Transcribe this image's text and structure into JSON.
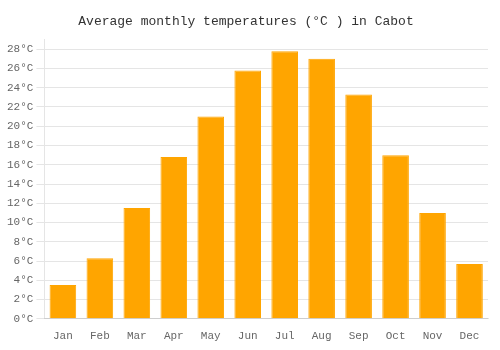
{
  "chart_data": {
    "type": "bar",
    "title": "Average monthly temperatures (°C ) in Cabot",
    "categories": [
      "Jan",
      "Feb",
      "Mar",
      "Apr",
      "May",
      "Jun",
      "Jul",
      "Aug",
      "Sep",
      "Oct",
      "Nov",
      "Dec"
    ],
    "values": [
      3.5,
      6.3,
      11.5,
      16.8,
      21.0,
      25.8,
      27.8,
      27.0,
      23.3,
      17.0,
      11.0,
      5.7
    ],
    "color": "#FFA500",
    "ylim": [
      0,
      29
    ],
    "yticks": [
      {
        "value": 0,
        "label": "0°C"
      },
      {
        "value": 2,
        "label": "2°C"
      },
      {
        "value": 4,
        "label": "4°C"
      },
      {
        "value": 6,
        "label": "6°C"
      },
      {
        "value": 8,
        "label": "8°C"
      },
      {
        "value": 10,
        "label": "10°C"
      },
      {
        "value": 12,
        "label": "12°C"
      },
      {
        "value": 14,
        "label": "14°C"
      },
      {
        "value": 16,
        "label": "16°C"
      },
      {
        "value": 18,
        "label": "18°C"
      },
      {
        "value": 20,
        "label": "20°C"
      },
      {
        "value": 22,
        "label": "22°C"
      },
      {
        "value": 24,
        "label": "24°C"
      },
      {
        "value": 26,
        "label": "26°C"
      },
      {
        "value": 28,
        "label": "28°C"
      }
    ],
    "grid": true
  }
}
